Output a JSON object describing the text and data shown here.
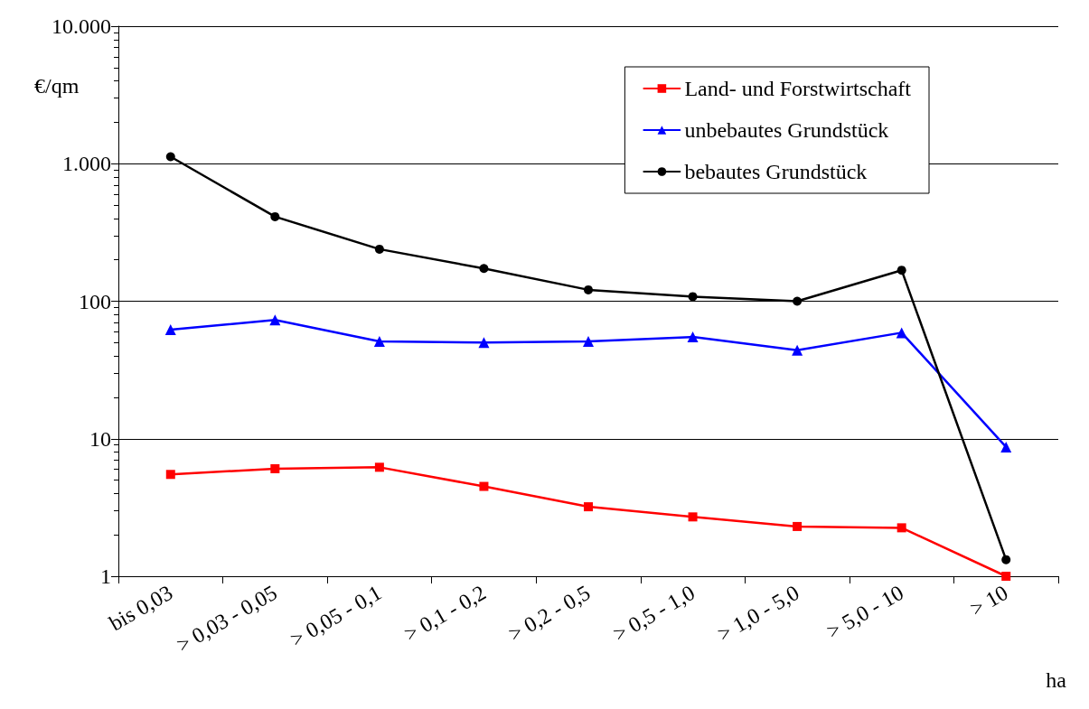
{
  "chart_data": {
    "type": "line",
    "xlabel": "ha",
    "ylabel": "€/qm",
    "categories": [
      "bis 0,03",
      "> 0,03 - 0,05",
      "> 0,05 - 0,1",
      "> 0,1 - 0,2",
      "> 0,2 - 0,5",
      "> 0,5 - 1,0",
      "> 1,0 - 5,0",
      "> 5,0 - 10",
      "> 10"
    ],
    "series": [
      {
        "name": "Land- und Forstwirtschaft",
        "color": "#ff0000",
        "marker": "square",
        "values": [
          5.5,
          6.05,
          6.2,
          4.5,
          3.2,
          2.7,
          2.3,
          2.25,
          1.0
        ]
      },
      {
        "name": "unbebautes Grundstück",
        "color": "#0000ff",
        "marker": "triangle",
        "values": [
          62,
          73,
          51,
          50,
          51,
          55,
          44,
          59,
          8.7
        ]
      },
      {
        "name": "bebautes Grundstück",
        "color": "#000000",
        "marker": "circle",
        "values": [
          1125,
          412,
          239,
          173,
          121,
          108,
          100,
          168,
          1.32
        ]
      }
    ],
    "log": "y",
    "ylim": [
      1,
      10000
    ],
    "yticks": [
      1,
      10,
      100,
      {
        "value": 1000,
        "label": "1.000"
      },
      {
        "value": 10000,
        "label": "10.000"
      }
    ],
    "grid": "y",
    "legend": "top right",
    "line_style": "solid"
  }
}
